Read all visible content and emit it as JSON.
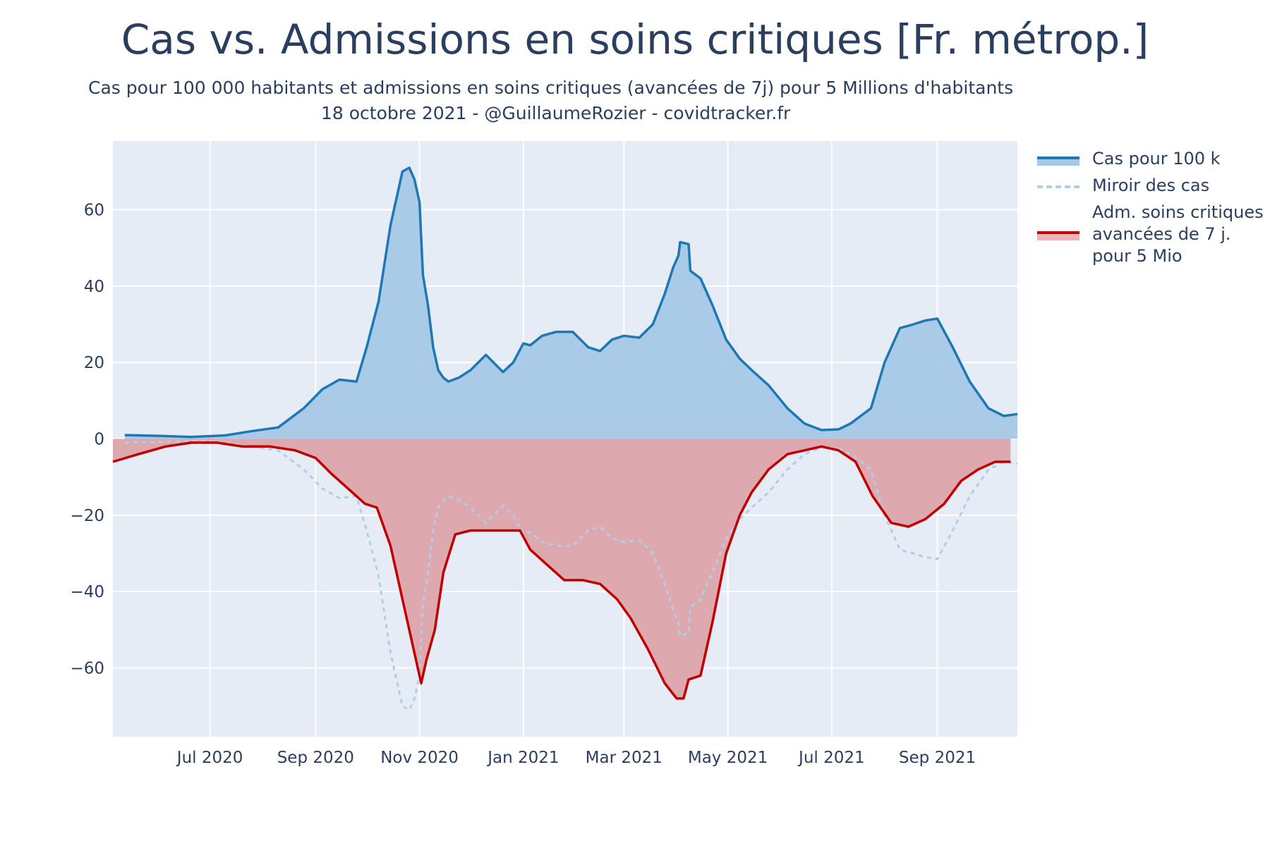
{
  "title": "Cas vs. Admissions en soins critiques [Fr. métrop.]",
  "subtitle_line1": "Cas pour 100 000 habitants et admissions en soins critiques (avancées de 7j) pour 5 Millions d'habitants",
  "subtitle_line2": "18 octobre 2021 - @GuillaumeRozier - covidtracker.fr",
  "colors": {
    "plot_bg": "#e5ecf6",
    "grid": "#ffffff",
    "cases_line": "#1f77b4",
    "cases_fill": "#a5c9e6",
    "mirror": "#b3cde6",
    "icu_line": "#c00000",
    "icu_fill": "#dda4ab"
  },
  "legend": {
    "cases": "Cas pour 100 k",
    "mirror": "Miroir des cas",
    "icu_line1": "Adm. soins critiques",
    "icu_line2": "avancées de 7 j.",
    "icu_line3": "pour 5 Mio"
  },
  "chart_data": {
    "type": "area",
    "x_ticks": [
      "Jul 2020",
      "Sep 2020",
      "Nov 2020",
      "Jan 2021",
      "Mar 2021",
      "May 2021",
      "Jul 2021",
      "Sep 2021"
    ],
    "y_ticks": [
      60,
      40,
      20,
      0,
      -20,
      -40,
      -60
    ],
    "ylim": [
      -78,
      78
    ],
    "xlim": [
      "2020-05-05",
      "2021-10-18"
    ],
    "grid": true,
    "legend_position": "right",
    "series": [
      {
        "name": "Cas pour 100 k",
        "x": [
          "2020-05-12",
          "2020-06-01",
          "2020-06-20",
          "2020-07-10",
          "2020-07-25",
          "2020-08-10",
          "2020-08-25",
          "2020-09-05",
          "2020-09-15",
          "2020-09-25",
          "2020-10-01",
          "2020-10-08",
          "2020-10-15",
          "2020-10-22",
          "2020-10-26",
          "2020-10-29",
          "2020-11-01",
          "2020-11-03",
          "2020-11-06",
          "2020-11-09",
          "2020-11-12",
          "2020-11-15",
          "2020-11-18",
          "2020-11-24",
          "2020-12-01",
          "2020-12-10",
          "2020-12-20",
          "2020-12-26",
          "2021-01-01",
          "2021-01-05",
          "2021-01-12",
          "2021-01-20",
          "2021-01-30",
          "2021-02-08",
          "2021-02-15",
          "2021-02-22",
          "2021-03-01",
          "2021-03-10",
          "2021-03-18",
          "2021-03-25",
          "2021-03-30",
          "2021-04-02",
          "2021-04-03",
          "2021-04-08",
          "2021-04-09",
          "2021-04-15",
          "2021-04-22",
          "2021-04-30",
          "2021-05-08",
          "2021-05-15",
          "2021-05-25",
          "2021-06-05",
          "2021-06-15",
          "2021-06-25",
          "2021-07-05",
          "2021-07-12",
          "2021-07-18",
          "2021-07-24",
          "2021-08-01",
          "2021-08-10",
          "2021-08-18",
          "2021-08-25",
          "2021-09-01",
          "2021-09-10",
          "2021-09-20",
          "2021-10-01",
          "2021-10-10",
          "2021-10-18"
        ],
        "y": [
          1,
          0.8,
          0.5,
          0.9,
          2,
          3,
          8,
          13,
          15.5,
          15,
          24,
          36,
          56,
          70,
          71,
          68,
          62,
          43,
          35,
          24,
          18,
          16,
          15,
          16,
          18,
          22,
          17.5,
          20,
          25,
          24.5,
          27,
          28,
          28,
          24,
          23,
          26,
          27,
          26.5,
          30,
          38,
          45,
          48,
          51.5,
          51,
          44,
          42,
          35,
          26,
          21,
          18,
          14,
          8,
          4,
          2.3,
          2.5,
          4,
          6,
          8,
          20,
          29,
          30,
          31,
          31.5,
          24,
          15,
          8,
          6,
          6.5
        ]
      },
      {
        "name": "Miroir des cas",
        "x": [
          "2020-05-12",
          "2020-06-01",
          "2020-06-20",
          "2020-07-10",
          "2020-07-25",
          "2020-08-10",
          "2020-08-25",
          "2020-09-05",
          "2020-09-15",
          "2020-09-25",
          "2020-10-01",
          "2020-10-08",
          "2020-10-15",
          "2020-10-22",
          "2020-10-26",
          "2020-10-29",
          "2020-11-01",
          "2020-11-03",
          "2020-11-06",
          "2020-11-09",
          "2020-11-12",
          "2020-11-15",
          "2020-11-18",
          "2020-11-24",
          "2020-12-01",
          "2020-12-10",
          "2020-12-20",
          "2020-12-26",
          "2021-01-01",
          "2021-01-05",
          "2021-01-12",
          "2021-01-20",
          "2021-01-30",
          "2021-02-08",
          "2021-02-15",
          "2021-02-22",
          "2021-03-01",
          "2021-03-10",
          "2021-03-18",
          "2021-03-25",
          "2021-03-30",
          "2021-04-02",
          "2021-04-03",
          "2021-04-08",
          "2021-04-09",
          "2021-04-15",
          "2021-04-22",
          "2021-04-30",
          "2021-05-08",
          "2021-05-15",
          "2021-05-25",
          "2021-06-05",
          "2021-06-15",
          "2021-06-25",
          "2021-07-05",
          "2021-07-12",
          "2021-07-18",
          "2021-07-24",
          "2021-08-01",
          "2021-08-10",
          "2021-08-18",
          "2021-08-25",
          "2021-09-01",
          "2021-09-10",
          "2021-09-20",
          "2021-10-01",
          "2021-10-10",
          "2021-10-18"
        ],
        "y": [
          -1,
          -0.8,
          -0.5,
          -0.9,
          -2,
          -3,
          -8,
          -13,
          -15.5,
          -15,
          -24,
          -36,
          -56,
          -70,
          -71,
          -68,
          -62,
          -43,
          -35,
          -24,
          -18,
          -16,
          -15,
          -16,
          -18,
          -22,
          -17.5,
          -20,
          -25,
          -24.5,
          -27,
          -28,
          -28,
          -24,
          -23,
          -26,
          -27,
          -26.5,
          -30,
          -38,
          -45,
          -48,
          -51.5,
          -51,
          -44,
          -42,
          -35,
          -26,
          -21,
          -18,
          -14,
          -8,
          -4,
          -2.3,
          -2.5,
          -4,
          -6,
          -8,
          -20,
          -29,
          -30,
          -31,
          -31.5,
          -24,
          -15,
          -8,
          -6,
          -6.5
        ]
      },
      {
        "name": "Adm. soins critiques avancées de 7 j. pour 5 Mio",
        "x": [
          "2020-05-05",
          "2020-05-20",
          "2020-06-05",
          "2020-06-20",
          "2020-07-05",
          "2020-07-20",
          "2020-08-05",
          "2020-08-20",
          "2020-09-01",
          "2020-09-10",
          "2020-09-20",
          "2020-09-30",
          "2020-10-07",
          "2020-10-15",
          "2020-10-22",
          "2020-10-29",
          "2020-11-02",
          "2020-11-05",
          "2020-11-10",
          "2020-11-15",
          "2020-11-22",
          "2020-12-01",
          "2020-12-10",
          "2020-12-20",
          "2020-12-30",
          "2021-01-05",
          "2021-01-15",
          "2021-01-25",
          "2021-02-05",
          "2021-02-15",
          "2021-02-25",
          "2021-03-05",
          "2021-03-15",
          "2021-03-25",
          "2021-04-01",
          "2021-04-05",
          "2021-04-08",
          "2021-04-15",
          "2021-04-22",
          "2021-04-30",
          "2021-05-08",
          "2021-05-15",
          "2021-05-25",
          "2021-06-05",
          "2021-06-15",
          "2021-06-25",
          "2021-07-05",
          "2021-07-15",
          "2021-07-25",
          "2021-08-05",
          "2021-08-15",
          "2021-08-25",
          "2021-09-05",
          "2021-09-15",
          "2021-09-25",
          "2021-10-05",
          "2021-10-14"
        ],
        "y": [
          -6,
          -4,
          -2,
          -1,
          -1,
          -2,
          -2,
          -3,
          -5,
          -9,
          -13,
          -17,
          -18,
          -28,
          -42,
          -56,
          -64,
          -58,
          -50,
          -35,
          -25,
          -24,
          -24,
          -24,
          -24,
          -29,
          -33,
          -37,
          -37,
          -38,
          -42,
          -47,
          -55,
          -64,
          -68,
          -68,
          -63,
          -62,
          -48,
          -30,
          -20,
          -14,
          -8,
          -4,
          -3,
          -2,
          -3,
          -6,
          -15,
          -22,
          -23,
          -21,
          -17,
          -11,
          -8,
          -6,
          -6
        ]
      }
    ]
  }
}
